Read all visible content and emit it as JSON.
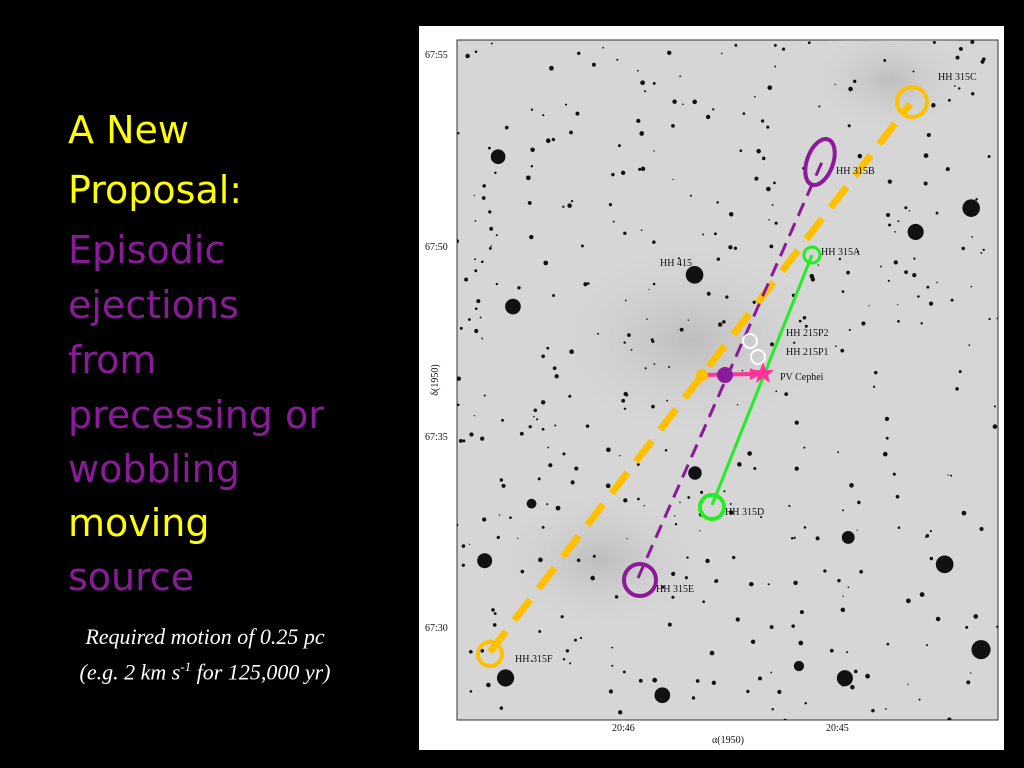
{
  "slide": {
    "title_lines": [
      "A New",
      "Proposal:"
    ],
    "body_lines": [
      "Episodic",
      "ejections",
      "from",
      "precessing or",
      "wobbling"
    ],
    "highlight": "moving",
    "last_line": "source",
    "caption": {
      "line1": "Required motion of 0.25 pc",
      "line2_start": "(e.g. 2 km s",
      "line2_sup": "-1",
      "line2_end": " for 125,000 yr)"
    }
  },
  "figure": {
    "labels": [
      "HH 315C",
      "HH 315B",
      "HH 415",
      "HH 315A",
      "HH 215P2",
      "HH 215P1",
      "PV Cephei",
      "HH 315D",
      "HH 315E",
      "HH 315F"
    ],
    "y_ticks": [
      "67:55",
      "67:50",
      "67:35",
      "67:30"
    ],
    "x_ticks": [
      "20:46",
      "20:45"
    ],
    "y_axis_title": "δ(1950)",
    "x_axis_title": "α(1950)"
  }
}
